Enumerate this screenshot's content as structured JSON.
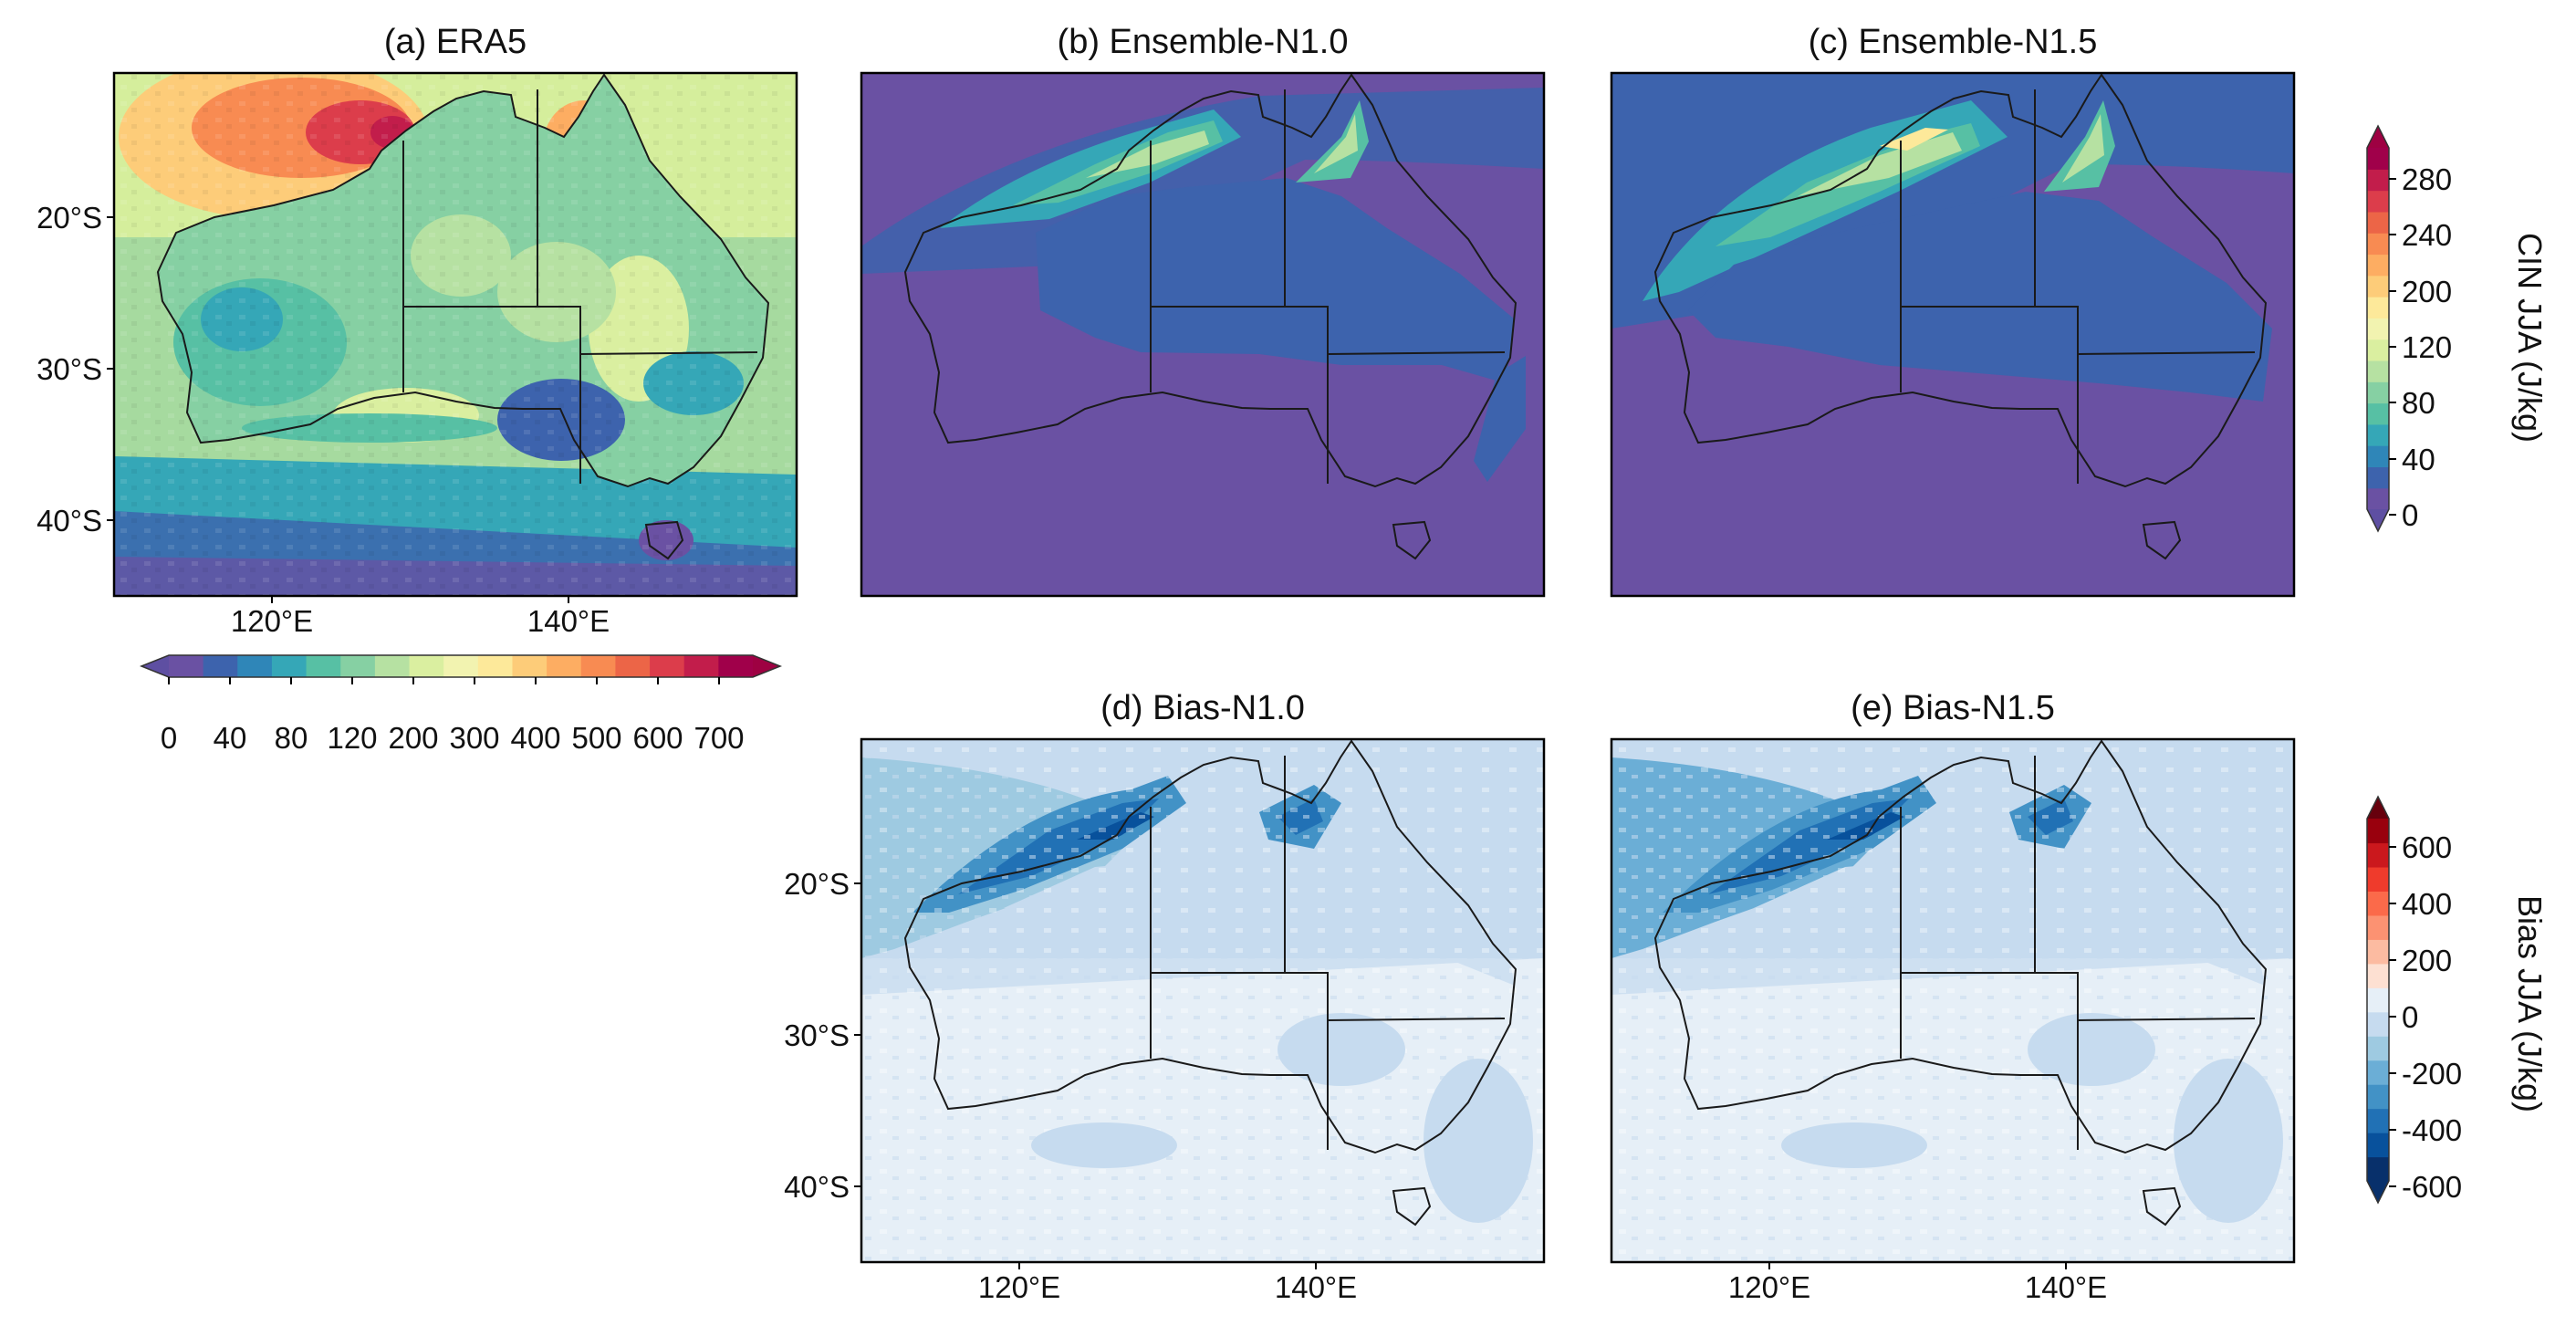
{
  "figure": {
    "panels": [
      {
        "id": "a",
        "title": "(a) ERA5",
        "palette": "spectral",
        "field": "era5_cin",
        "lat_ticks": [
          "20°S",
          "30°S",
          "40°S"
        ],
        "lon_ticks": [
          "120°E",
          "140°E"
        ]
      },
      {
        "id": "b",
        "title": "(b) Ensemble-N1.0",
        "palette": "spectral",
        "field": "ensemble_n10",
        "lat_ticks": [],
        "lon_ticks": []
      },
      {
        "id": "c",
        "title": "(c) Ensemble-N1.5",
        "palette": "spectral",
        "field": "ensemble_n15",
        "lat_ticks": [],
        "lon_ticks": []
      },
      {
        "id": "d",
        "title": "(d) Bias-N1.0",
        "palette": "blues_bias",
        "field": "bias_n10",
        "lat_ticks": [
          "20°S",
          "30°S",
          "40°S"
        ],
        "lon_ticks": [
          "120°E",
          "140°E"
        ]
      },
      {
        "id": "e",
        "title": "(e) Bias-N1.5",
        "palette": "blues_bias",
        "field": "bias_n15",
        "lat_ticks": [],
        "lon_ticks": [
          "120°E",
          "140°E"
        ]
      }
    ],
    "colorbars": {
      "era5": {
        "orientation": "horizontal",
        "label": "",
        "tick_labels": [
          "0",
          "40",
          "80",
          "120",
          "200",
          "300",
          "400",
          "500",
          "600",
          "700"
        ],
        "colors": [
          "#6a51a3",
          "#3d63ad",
          "#2f86b8",
          "#35a7b7",
          "#57c0a4",
          "#86d0a3",
          "#b6e1a2",
          "#daefa0",
          "#f2f3b0",
          "#fde99a",
          "#fdcc79",
          "#fdad62",
          "#f88b52",
          "#ec6547",
          "#dc3d4b",
          "#c21d4b",
          "#a0004a"
        ]
      },
      "ensemble": {
        "orientation": "vertical",
        "label": "CIN JJA (J/kg)",
        "tick_labels": [
          "0",
          "40",
          "80",
          "120",
          "200",
          "240",
          "280"
        ],
        "colors": [
          "#6a51a3",
          "#3d63ad",
          "#2f86b8",
          "#35a7b7",
          "#57c0a4",
          "#86d0a3",
          "#b6e1a2",
          "#daefa0",
          "#f2f3b0",
          "#fde99a",
          "#fdcc79",
          "#fdad62",
          "#f88b52",
          "#ec6547",
          "#dc3d4b",
          "#c21d4b",
          "#a0004a"
        ]
      },
      "bias": {
        "orientation": "vertical",
        "label": "Bias JJA (J/kg)",
        "tick_labels": [
          "-600",
          "-400",
          "-200",
          "0",
          "200",
          "400",
          "600"
        ],
        "colors": [
          "#08306b",
          "#08519c",
          "#2171b5",
          "#4292c6",
          "#6baed6",
          "#9ecae1",
          "#c6dbef",
          "#e6eff7",
          "#fde0d2",
          "#fcbba1",
          "#fc9272",
          "#fb6a4a",
          "#ef3b2c",
          "#cb181d",
          "#99000d"
        ]
      }
    }
  }
}
